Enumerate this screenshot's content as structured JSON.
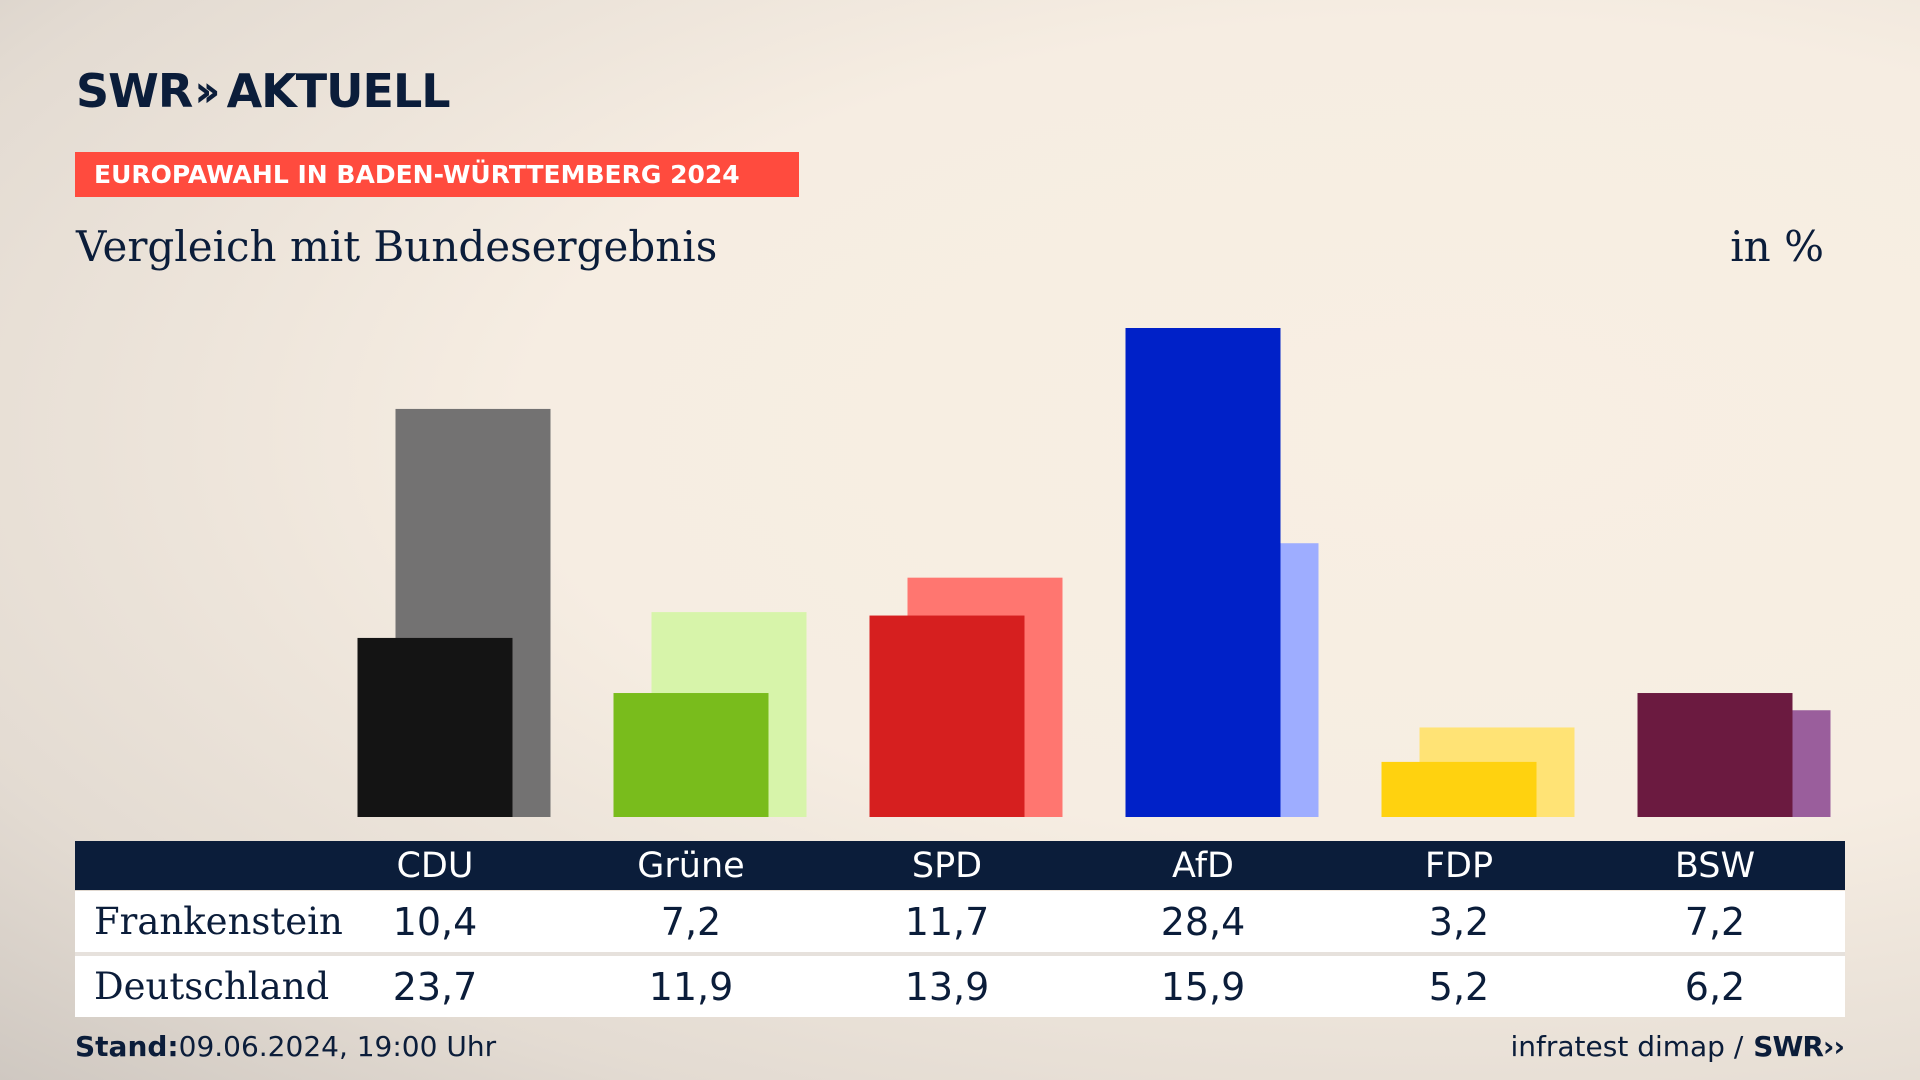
{
  "header": {
    "brand": "SWR",
    "brand_suffix": "AKTUELL",
    "topic": "EUROPAWAHL IN BADEN-WÜRTTEMBERG 2024",
    "subtitle": "Vergleich mit Bundesergebnis",
    "unit": "in %"
  },
  "footer": {
    "stand_label": "Stand:",
    "stand_value": "09.06.2024, 19:00 Uhr",
    "source": "infratest dimap /",
    "source_logo": "SWR"
  },
  "chart_data": {
    "type": "bar",
    "categories": [
      "CDU",
      "Grüne",
      "SPD",
      "AfD",
      "FDP",
      "BSW"
    ],
    "series": [
      {
        "name": "Frankenstein",
        "values": [
          10.4,
          7.2,
          11.7,
          28.4,
          3.2,
          7.2
        ],
        "colors": [
          "#141414",
          "#79bc1c",
          "#d61f1f",
          "#0021c8",
          "#ffd20f",
          "#6b1a40"
        ]
      },
      {
        "name": "Deutschland",
        "values": [
          23.7,
          11.9,
          13.9,
          15.9,
          5.2,
          6.2
        ],
        "colors": [
          "#737272",
          "#d7f4aa",
          "#ff7670",
          "#9eadff",
          "#ffe375",
          "#9a5e9c"
        ]
      }
    ],
    "value_labels": {
      "Frankenstein": [
        "10,4",
        "7,2",
        "11,7",
        "28,4",
        "3,2",
        "7,2"
      ],
      "Deutschland": [
        "23,7",
        "11,9",
        "13,9",
        "15,9",
        "5,2",
        "6,2"
      ]
    },
    "ylim": [
      0,
      28.4
    ],
    "grid": false,
    "legend": "table below chart"
  }
}
